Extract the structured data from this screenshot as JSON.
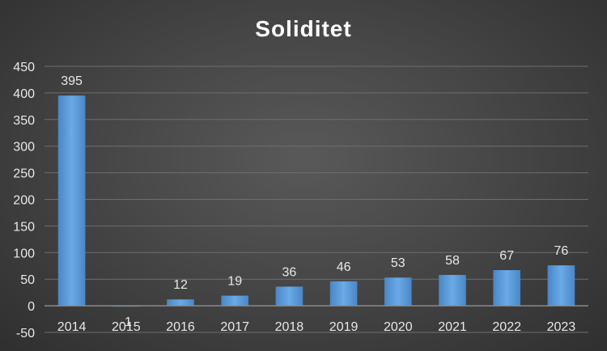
{
  "chart_data": {
    "type": "bar",
    "title": "Soliditet",
    "categories": [
      "2014",
      "2015",
      "2016",
      "2017",
      "2018",
      "2019",
      "2020",
      "2021",
      "2022",
      "2023"
    ],
    "values": [
      395,
      -1,
      12,
      19,
      36,
      46,
      53,
      58,
      67,
      76
    ],
    "data_labels": [
      "395",
      "-1",
      "12",
      "19",
      "36",
      "46",
      "53",
      "58",
      "67",
      "76"
    ],
    "ylim": [
      -50,
      450
    ],
    "yticks": [
      -50,
      0,
      50,
      100,
      150,
      200,
      250,
      300,
      350,
      400,
      450
    ],
    "xlabel": "",
    "ylabel": "",
    "grid": true,
    "bar_color": "#5b9bd5",
    "background": "#474747"
  }
}
